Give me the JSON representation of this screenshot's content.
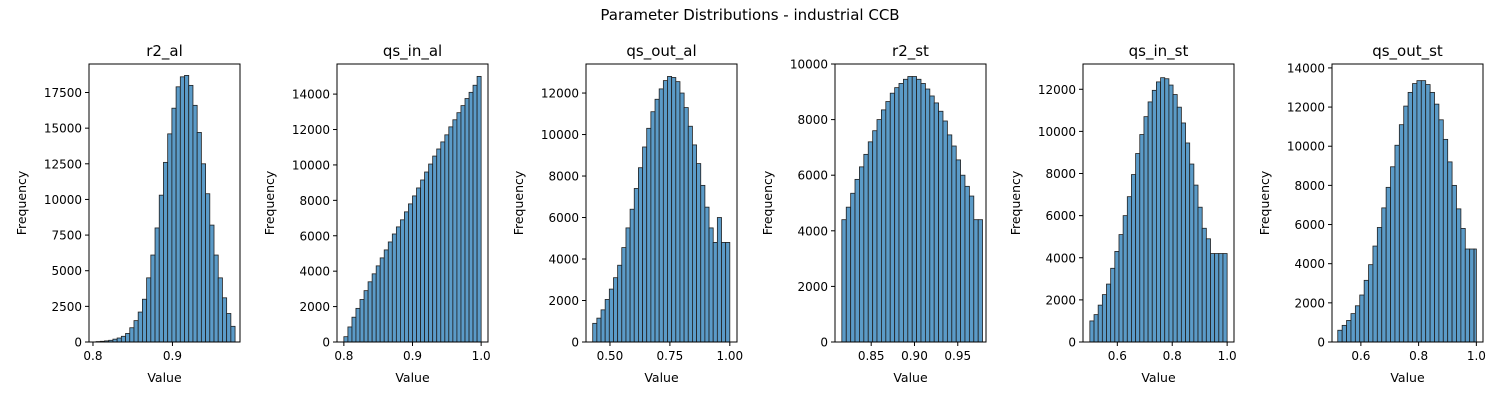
{
  "figure": {
    "suptitle": "Parameter Distributions - industrial CCB"
  },
  "colors": {
    "bar_fill": "#5b9bc8",
    "bar_edge": "#1f1f1f",
    "axes": "#000000"
  },
  "chart_data": [
    {
      "type": "bar",
      "title": "r2_al",
      "xlabel": "Value",
      "ylabel": "Frequency",
      "xlim": [
        0.795,
        0.985
      ],
      "ylim": [
        0,
        19500
      ],
      "xticks": [
        0.8,
        0.9
      ],
      "xticklabels": [
        "0.8",
        "0.9"
      ],
      "yticks": [
        0,
        2500,
        5000,
        7500,
        10000,
        12500,
        15000,
        17500
      ],
      "yticklabels": [
        "0",
        "2500",
        "5000",
        "7500",
        "10000",
        "12500",
        "15000",
        "17500"
      ],
      "bin_edges": [
        0.8039,
        0.8092,
        0.8145,
        0.8198,
        0.8251,
        0.8304,
        0.8357,
        0.841,
        0.8463,
        0.8516,
        0.8569,
        0.8622,
        0.8675,
        0.8728,
        0.8781,
        0.8834,
        0.8887,
        0.894,
        0.8993,
        0.9046,
        0.9099,
        0.9152,
        0.9205,
        0.9258,
        0.9311,
        0.9364,
        0.9417,
        0.947,
        0.9523,
        0.9576,
        0.9629,
        0.9682,
        0.9735,
        0.9788
      ],
      "values": [
        30,
        50,
        80,
        120,
        200,
        280,
        400,
        600,
        1000,
        1500,
        2100,
        3000,
        4500,
        6100,
        8000,
        10300,
        12600,
        14600,
        16400,
        17900,
        18600,
        18700,
        18000,
        16600,
        14700,
        12500,
        10400,
        8200,
        6100,
        4500,
        3100,
        2000,
        1100
      ]
    },
    {
      "type": "bar",
      "title": "qs_in_al",
      "xlabel": "Value",
      "ylabel": "Frequency",
      "xlim": [
        0.79,
        1.01
      ],
      "ylim": [
        0,
        15700
      ],
      "xticks": [
        0.8,
        0.9,
        1.0
      ],
      "xticklabels": [
        "0.8",
        "0.9",
        "1.0"
      ],
      "yticks": [
        0,
        2000,
        4000,
        6000,
        8000,
        10000,
        12000,
        14000
      ],
      "yticklabels": [
        "0",
        "2000",
        "4000",
        "6000",
        "8000",
        "10000",
        "12000",
        "14000"
      ],
      "bin_edges": [
        0.8,
        0.8059,
        0.8118,
        0.8176,
        0.8235,
        0.8294,
        0.8353,
        0.8412,
        0.8471,
        0.8529,
        0.8588,
        0.8647,
        0.8706,
        0.8765,
        0.8824,
        0.8882,
        0.8941,
        0.9,
        0.9059,
        0.9118,
        0.9176,
        0.9235,
        0.9294,
        0.9353,
        0.9412,
        0.9471,
        0.9529,
        0.9588,
        0.9647,
        0.9706,
        0.9765,
        0.9824,
        0.9882,
        0.9941,
        1.0
      ],
      "values": [
        300,
        850,
        1400,
        1900,
        2400,
        2900,
        3400,
        3850,
        4300,
        4750,
        5200,
        5650,
        6100,
        6500,
        6900,
        7350,
        7800,
        8250,
        8700,
        9150,
        9600,
        10050,
        10500,
        10900,
        11300,
        11700,
        12150,
        12550,
        12950,
        13350,
        13750,
        14100,
        14500,
        15000
      ]
    },
    {
      "type": "bar",
      "title": "qs_out_al",
      "xlabel": "Value",
      "ylabel": "Frequency",
      "xlim": [
        0.4,
        1.03
      ],
      "ylim": [
        0,
        13400
      ],
      "xticks": [
        0.5,
        0.75,
        1.0
      ],
      "xticklabels": [
        "0.50",
        "0.75",
        "1.00"
      ],
      "yticks": [
        0,
        2000,
        4000,
        6000,
        8000,
        10000,
        12000
      ],
      "yticklabels": [
        "0",
        "2000",
        "4000",
        "6000",
        "8000",
        "10000",
        "12000"
      ],
      "bin_edges": [
        0.428,
        0.4453,
        0.4627,
        0.48,
        0.4973,
        0.5147,
        0.532,
        0.5493,
        0.5667,
        0.584,
        0.6013,
        0.6187,
        0.636,
        0.6533,
        0.6707,
        0.688,
        0.7053,
        0.7227,
        0.74,
        0.7573,
        0.7747,
        0.792,
        0.8093,
        0.8267,
        0.844,
        0.8613,
        0.8787,
        0.896,
        0.9133,
        0.9307,
        0.948,
        0.9653,
        0.9827,
        1.0
      ],
      "values": [
        900,
        1150,
        1550,
        2050,
        2550,
        3100,
        3700,
        4550,
        5500,
        6400,
        7400,
        8400,
        9400,
        10300,
        11100,
        11700,
        12200,
        12600,
        12800,
        12750,
        12550,
        12000,
        11300,
        10400,
        9500,
        8600,
        7550,
        6500,
        5500,
        4800,
        6000,
        4800,
        4800
      ]
    },
    {
      "type": "bar",
      "title": "r2_st",
      "xlabel": "Value",
      "ylabel": "Frequency",
      "xlim": [
        0.8082,
        0.9826
      ],
      "ylim": [
        0,
        10000
      ],
      "xticks": [
        0.85,
        0.9,
        0.95
      ],
      "xticklabels": [
        "0.85",
        "0.90",
        "0.95"
      ],
      "yticks": [
        0,
        2000,
        4000,
        6000,
        8000,
        10000
      ],
      "yticklabels": [
        "0",
        "2000",
        "4000",
        "6000",
        "8000",
        "10000"
      ],
      "bin_edges": [
        0.8161,
        0.8212,
        0.8263,
        0.8313,
        0.8364,
        0.8415,
        0.8466,
        0.8517,
        0.8567,
        0.8618,
        0.8669,
        0.872,
        0.8771,
        0.8821,
        0.8872,
        0.8923,
        0.8974,
        0.9024,
        0.9075,
        0.9126,
        0.9177,
        0.9228,
        0.9278,
        0.9329,
        0.938,
        0.9431,
        0.9482,
        0.9532,
        0.9583,
        0.9634,
        0.9685,
        0.9736,
        0.9786
      ],
      "values": [
        4400,
        4850,
        5350,
        5850,
        6300,
        6750,
        7200,
        7600,
        8000,
        8350,
        8650,
        8950,
        9150,
        9300,
        9450,
        9550,
        9550,
        9450,
        9300,
        9100,
        8850,
        8600,
        8300,
        7950,
        7450,
        7050,
        6550,
        6000,
        5600,
        5250,
        4400,
        4400
      ]
    },
    {
      "type": "bar",
      "title": "qs_in_st",
      "xlabel": "Value",
      "ylabel": "Frequency",
      "xlim": [
        0.475,
        1.025
      ],
      "ylim": [
        0,
        13200
      ],
      "xticks": [
        0.6,
        0.8,
        1.0
      ],
      "xticklabels": [
        "0.6",
        "0.8",
        "1.0"
      ],
      "yticks": [
        0,
        2000,
        4000,
        6000,
        8000,
        10000,
        12000
      ],
      "yticklabels": [
        "0",
        "2000",
        "4000",
        "6000",
        "8000",
        "10000",
        "12000"
      ],
      "bin_edges": [
        0.5,
        0.5152,
        0.5303,
        0.5455,
        0.5606,
        0.5758,
        0.5909,
        0.6061,
        0.6212,
        0.6364,
        0.6515,
        0.6667,
        0.6818,
        0.697,
        0.7121,
        0.7273,
        0.7424,
        0.7576,
        0.7727,
        0.7879,
        0.803,
        0.8182,
        0.8333,
        0.8485,
        0.8636,
        0.8788,
        0.8939,
        0.9091,
        0.9242,
        0.9394,
        0.9545,
        0.9697,
        0.9848,
        1.0
      ],
      "values": [
        1000,
        1300,
        1750,
        2250,
        2750,
        3500,
        4300,
        5100,
        6000,
        6900,
        7950,
        8950,
        9850,
        10700,
        11400,
        11950,
        12350,
        12550,
        12500,
        12200,
        11750,
        11150,
        10400,
        9450,
        8450,
        7450,
        6400,
        5400,
        4900,
        4200,
        4200,
        4200,
        4200
      ]
    },
    {
      "type": "bar",
      "title": "qs_out_st",
      "xlabel": "Value",
      "ylabel": "Frequency",
      "xlim": [
        0.5,
        1.023
      ],
      "ylim": [
        0,
        14200
      ],
      "xticks": [
        0.6,
        0.8,
        1.0
      ],
      "xticklabels": [
        "0.6",
        "0.8",
        "1.0"
      ],
      "yticks": [
        0,
        2000,
        4000,
        6000,
        8000,
        10000,
        12000,
        14000
      ],
      "yticklabels": [
        "0",
        "2000",
        "4000",
        "6000",
        "8000",
        "10000",
        "12000",
        "14000"
      ],
      "bin_edges": [
        0.52,
        0.5352,
        0.5505,
        0.5657,
        0.5809,
        0.5961,
        0.6114,
        0.6266,
        0.6418,
        0.657,
        0.6723,
        0.6875,
        0.7027,
        0.718,
        0.7332,
        0.7484,
        0.7636,
        0.7789,
        0.7941,
        0.8093,
        0.8245,
        0.8398,
        0.855,
        0.8702,
        0.8855,
        0.9007,
        0.9159,
        0.9311,
        0.9464,
        0.9616,
        0.9768,
        0.992,
        1.0
      ],
      "values": [
        600,
        850,
        1100,
        1450,
        1850,
        2400,
        3150,
        3950,
        4900,
        5850,
        6850,
        7900,
        8950,
        10050,
        11100,
        12050,
        12750,
        13200,
        13350,
        13350,
        13150,
        12750,
        12150,
        11350,
        10350,
        9200,
        8000,
        6800,
        5800,
        4750,
        4750,
        4750
      ]
    }
  ]
}
